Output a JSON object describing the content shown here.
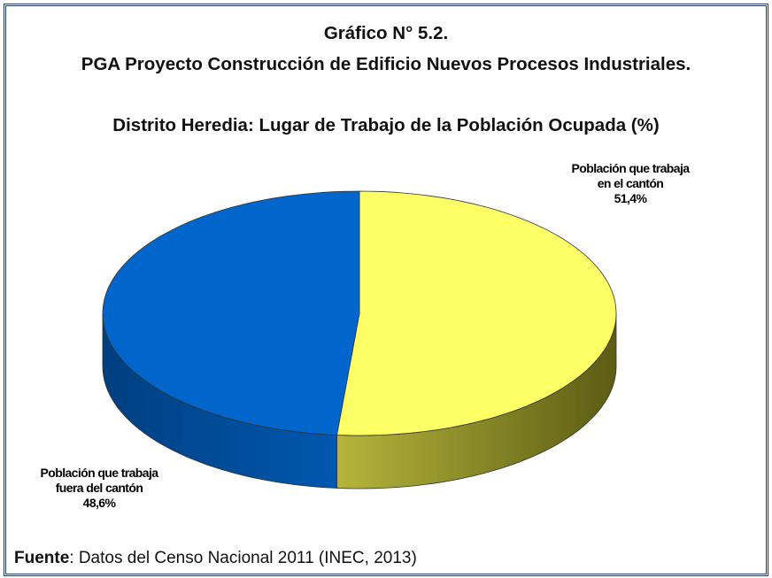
{
  "chart_data": {
    "type": "pie3d",
    "title": [
      "Gráfico N° 5.2.",
      "PGA Proyecto Construcción de Edificio Nuevos Procesos Industriales.",
      "Distrito Heredia: Lugar de Trabajo de la Población Ocupada (%)"
    ],
    "categories": [
      "Población que trabaja en el cantón",
      "Población que trabaja fuera del cantón"
    ],
    "values": [
      51.4,
      48.6
    ],
    "value_labels": [
      "51,4%",
      "48,6%"
    ],
    "colors": [
      "#ffff66",
      "#0066cc"
    ],
    "source_label": "Fuente",
    "source": ": Datos del Censo Nacional 2011 (INEC, 2013)"
  }
}
